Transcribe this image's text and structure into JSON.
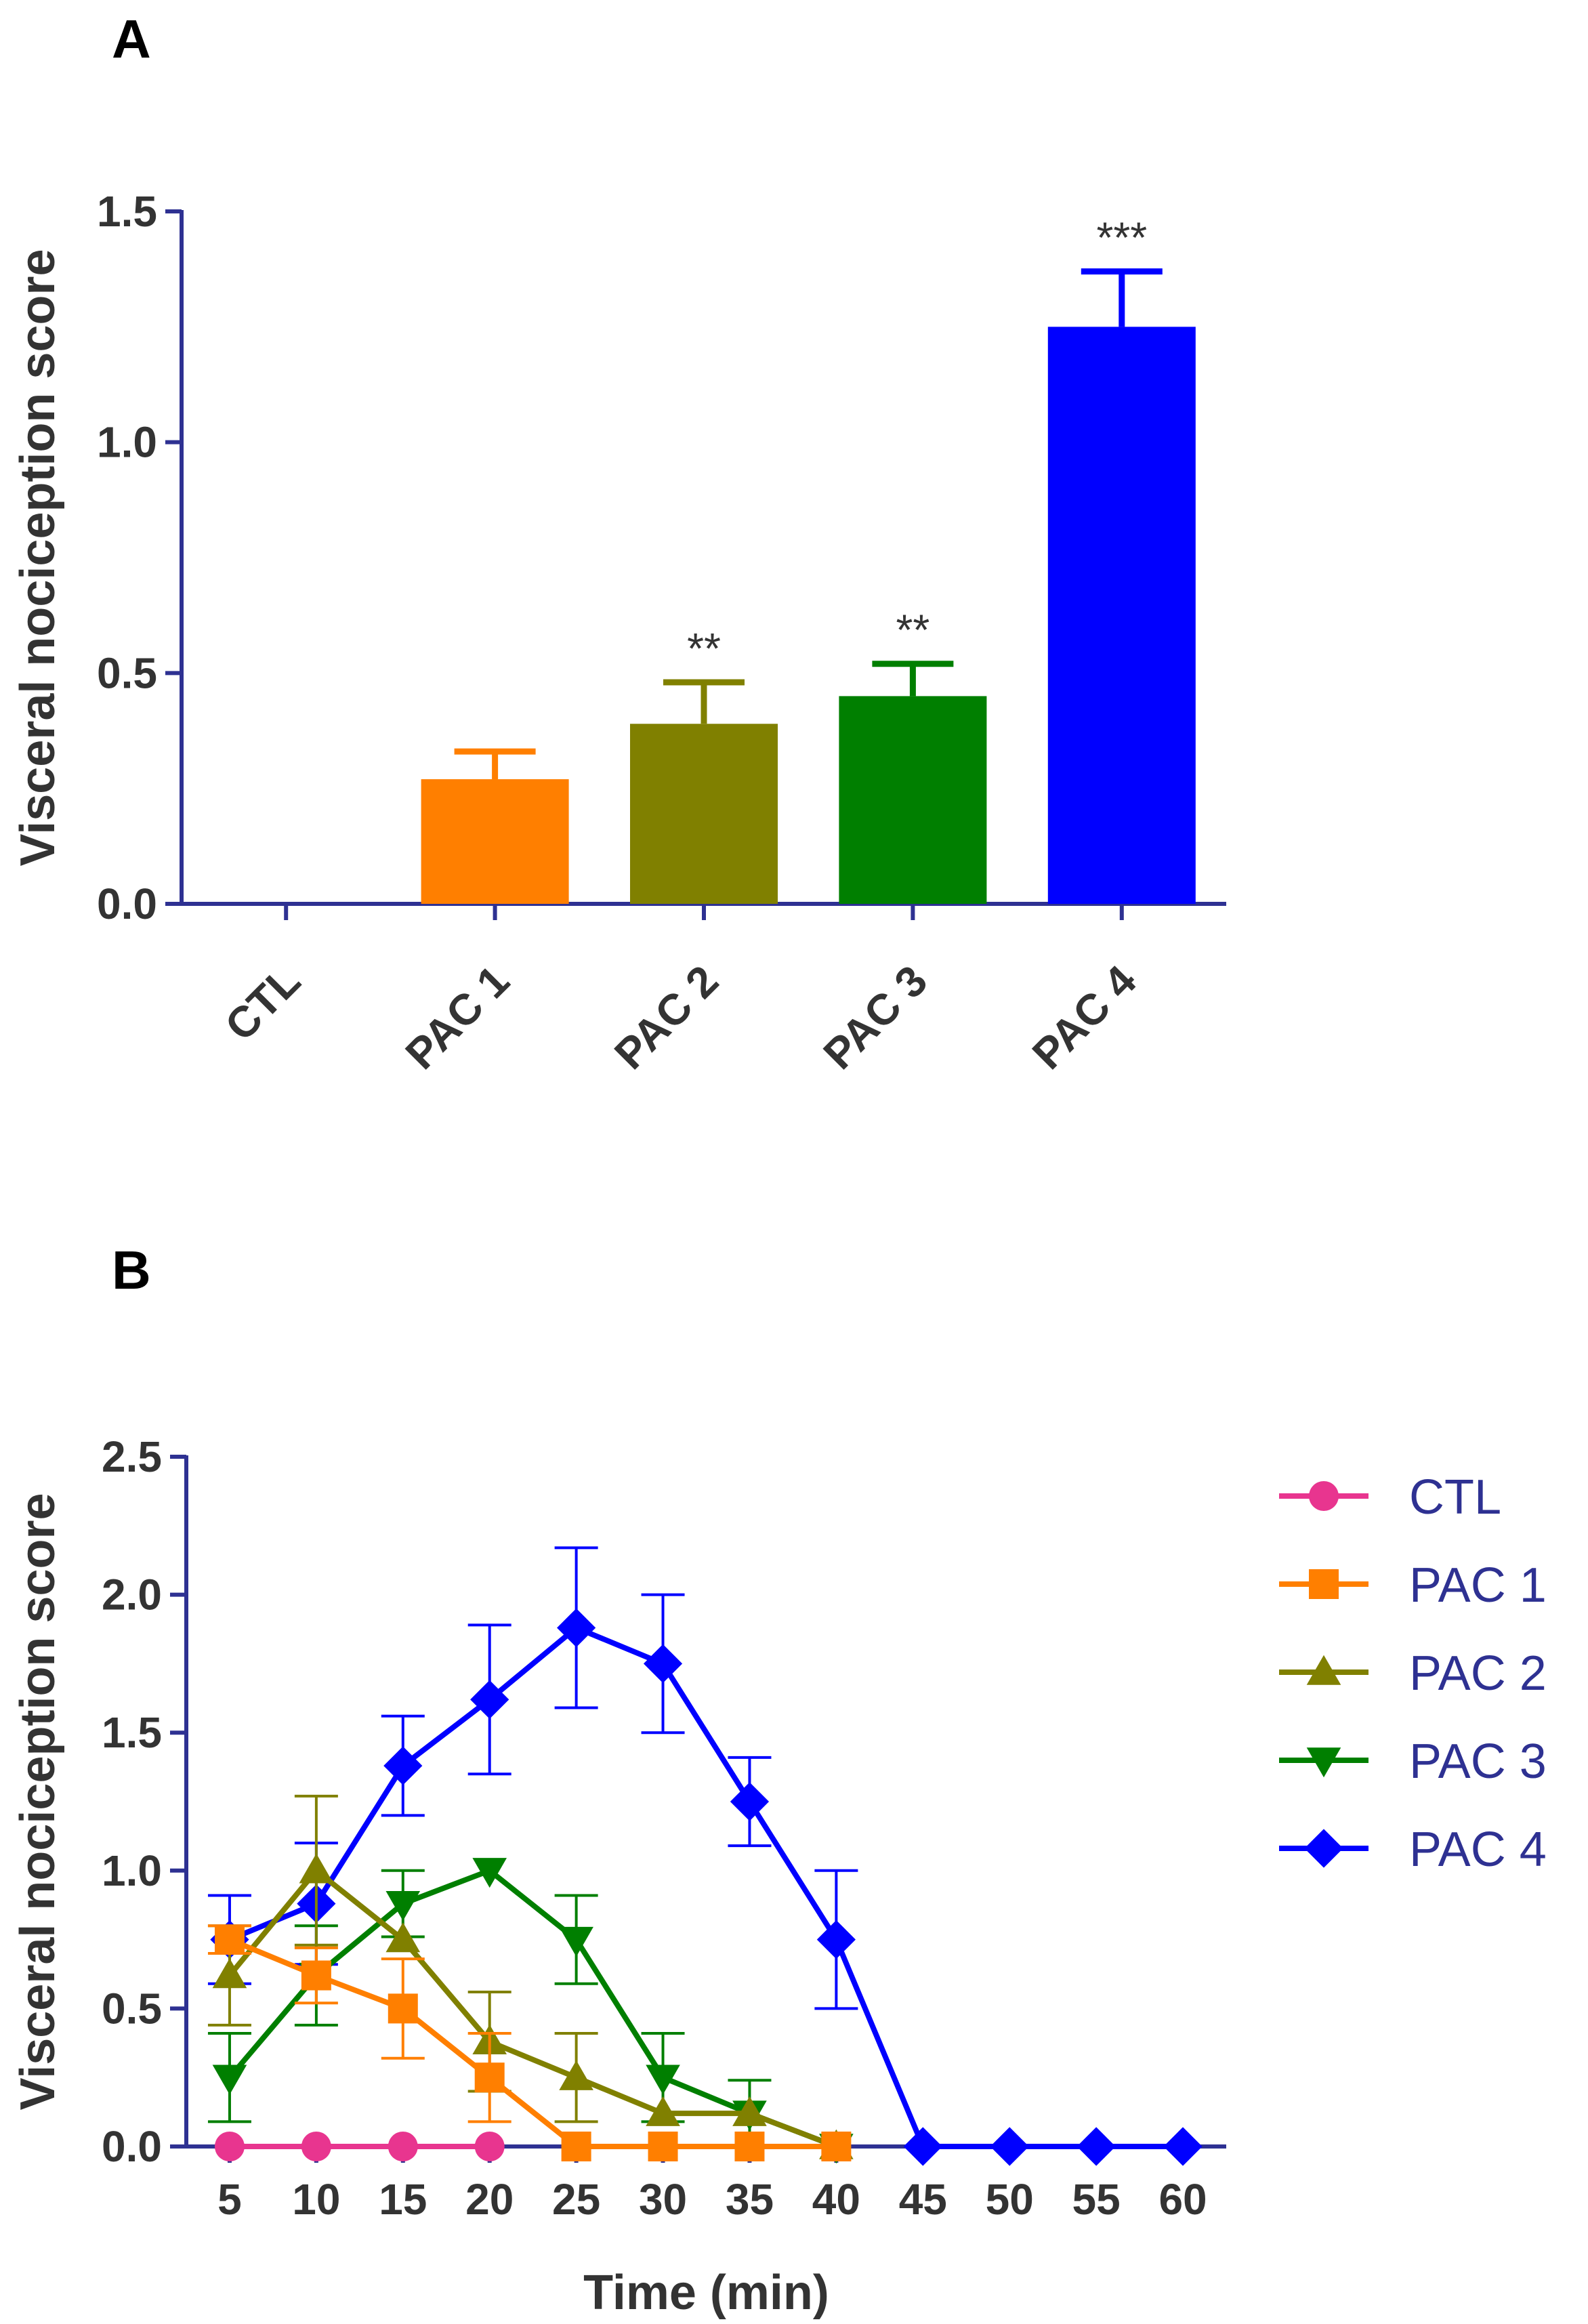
{
  "colors": {
    "axis": "#2e3192",
    "text": "#333333",
    "CTL": "#e8358f",
    "PAC 1": "#ff7f00",
    "PAC 2": "#808000",
    "PAC 3": "#007f00",
    "PAC 4": "#0000ff"
  },
  "chart_data": [
    {
      "panel": "A",
      "type": "bar",
      "title": "",
      "xlabel": "",
      "ylabel": "Visceral nociception score",
      "ylim": [
        0,
        1.5
      ],
      "yticks": [
        0.0,
        0.5,
        1.0,
        1.5
      ],
      "ytick_labels": [
        "0.0",
        "0.5",
        "1.0",
        "1.5"
      ],
      "categories": [
        "CTL",
        "PAC 1",
        "PAC 2",
        "PAC 3",
        "PAC 4"
      ],
      "values": [
        0.0,
        0.27,
        0.39,
        0.45,
        1.25
      ],
      "errors": [
        0.0,
        0.06,
        0.09,
        0.07,
        0.12
      ],
      "significance": [
        "",
        "",
        "**",
        "**",
        "***"
      ],
      "grid": false
    },
    {
      "panel": "B",
      "type": "line",
      "title": "",
      "xlabel": "Time (min)",
      "ylabel": "Visceral nociception score",
      "ylim": [
        0,
        2.5
      ],
      "yticks": [
        0.0,
        0.5,
        1.0,
        1.5,
        2.0,
        2.5
      ],
      "ytick_labels": [
        "0.0",
        "0.5",
        "1.0",
        "1.5",
        "2.0",
        "2.5"
      ],
      "x": [
        5,
        10,
        15,
        20,
        25,
        30,
        35,
        40,
        45,
        50,
        55,
        60
      ],
      "xtick_labels": [
        "5",
        "10",
        "15",
        "20",
        "25",
        "30",
        "35",
        "40",
        "45",
        "50",
        "55",
        "60"
      ],
      "legend_position": "right",
      "grid": false,
      "series": [
        {
          "name": "CTL",
          "marker": "circle",
          "values": [
            0,
            0,
            0,
            0,
            null,
            null,
            null,
            null,
            null,
            null,
            null,
            null
          ],
          "errors": [
            0,
            0,
            0,
            0,
            null,
            null,
            null,
            null,
            null,
            null,
            null,
            null
          ]
        },
        {
          "name": "PAC 1",
          "marker": "square",
          "values": [
            0.75,
            0.62,
            0.5,
            0.25,
            0,
            0,
            0,
            0,
            null,
            null,
            null,
            null
          ],
          "errors": [
            0.05,
            0.1,
            0.18,
            0.16,
            0,
            0,
            0,
            0,
            null,
            null,
            null,
            null
          ]
        },
        {
          "name": "PAC 2",
          "marker": "triangle-up",
          "values": [
            0.62,
            1.0,
            0.75,
            0.38,
            0.25,
            0.12,
            0.12,
            0,
            null,
            null,
            null,
            null
          ],
          "errors": [
            0.18,
            0.27,
            0.0,
            0.18,
            0.16,
            0.0,
            0.0,
            0,
            null,
            null,
            null,
            null
          ]
        },
        {
          "name": "PAC 3",
          "marker": "triangle-down",
          "values": [
            0.25,
            0.62,
            0.88,
            1.0,
            0.75,
            0.25,
            0.12,
            0,
            null,
            null,
            null,
            null
          ],
          "errors": [
            0.16,
            0.18,
            0.12,
            0.0,
            0.16,
            0.16,
            0.12,
            0,
            null,
            null,
            null,
            null
          ]
        },
        {
          "name": "PAC 4",
          "marker": "diamond",
          "values": [
            0.75,
            0.88,
            1.38,
            1.62,
            1.88,
            1.75,
            1.25,
            0.75,
            0,
            0,
            0,
            0
          ],
          "errors": [
            0.16,
            0.22,
            0.18,
            0.27,
            0.29,
            0.25,
            0.16,
            0.25,
            0,
            0,
            0,
            0
          ]
        }
      ]
    }
  ]
}
